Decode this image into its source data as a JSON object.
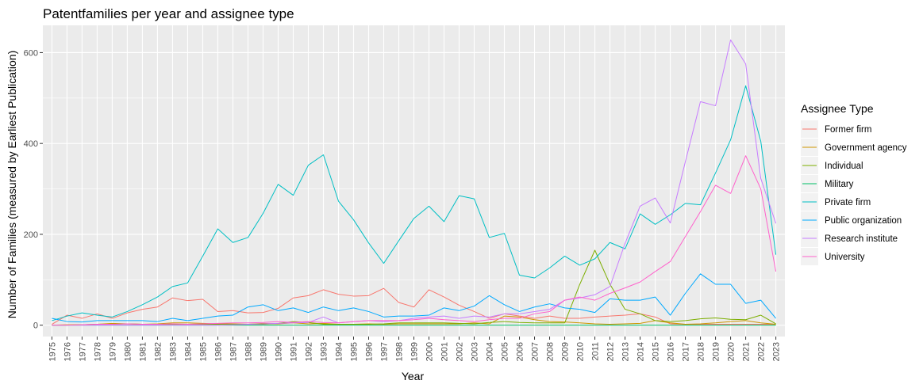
{
  "chart_data": {
    "type": "line",
    "title": "Patentfamilies per year and assignee type",
    "xlabel": "Year",
    "ylabel": "Number of Families (measured by Earliest Publication)",
    "ylim": [
      -25,
      660
    ],
    "y_ticks": [
      0,
      200,
      400,
      600
    ],
    "grid": true,
    "legend_title": "Assignee Type",
    "legend_position": "right",
    "x": [
      1975,
      1976,
      1977,
      1978,
      1979,
      1980,
      1981,
      1982,
      1983,
      1984,
      1985,
      1986,
      1987,
      1988,
      1989,
      1990,
      1991,
      1992,
      1993,
      1994,
      1995,
      1996,
      1997,
      1998,
      1999,
      2000,
      2001,
      2002,
      2003,
      2004,
      2005,
      2006,
      2007,
      2008,
      2009,
      2010,
      2011,
      2012,
      2013,
      2014,
      2015,
      2016,
      2017,
      2018,
      2019,
      2020,
      2021,
      2022,
      2023
    ],
    "series": [
      {
        "name": "Former firm",
        "color": "#F8766D",
        "values": [
          2,
          22,
          15,
          25,
          15,
          27,
          35,
          40,
          60,
          54,
          57,
          30,
          32,
          27,
          28,
          37,
          60,
          65,
          78,
          68,
          64,
          65,
          81,
          50,
          40,
          78,
          62,
          44,
          30,
          15,
          25,
          20,
          15,
          20,
          15,
          15,
          18,
          20,
          22,
          25,
          18,
          3,
          2,
          2,
          2,
          2,
          2,
          2,
          2
        ]
      },
      {
        "name": "Government agency",
        "color": "#CD9600",
        "values": [
          0,
          1,
          1,
          2,
          4,
          3,
          2,
          3,
          5,
          5,
          4,
          3,
          3,
          2,
          4,
          3,
          5,
          3,
          4,
          2,
          2,
          3,
          2,
          3,
          3,
          3,
          3,
          3,
          5,
          3,
          20,
          18,
          12,
          8,
          7,
          5,
          3,
          2,
          3,
          4,
          10,
          5,
          2,
          3,
          5,
          8,
          10,
          5,
          2
        ]
      },
      {
        "name": "Individual",
        "color": "#7CAE00",
        "values": [
          0,
          0,
          1,
          2,
          2,
          3,
          2,
          1,
          2,
          2,
          2,
          2,
          2,
          2,
          2,
          4,
          8,
          6,
          2,
          2,
          2,
          2,
          3,
          5,
          5,
          5,
          5,
          4,
          3,
          6,
          8,
          6,
          5,
          5,
          5,
          90,
          165,
          90,
          35,
          25,
          10,
          8,
          10,
          14,
          16,
          13,
          12,
          22,
          3
        ]
      },
      {
        "name": "Military",
        "color": "#00BE67",
        "values": [
          0,
          0,
          0,
          0,
          0,
          0,
          0,
          0,
          0,
          0,
          0,
          0,
          0,
          0,
          0,
          0,
          0,
          0,
          0,
          0,
          0,
          0,
          0,
          0,
          0,
          0,
          0,
          0,
          0,
          0,
          0,
          0,
          0,
          0,
          0,
          0,
          0,
          0,
          0,
          0,
          0,
          0,
          0,
          0,
          0,
          0,
          0,
          0,
          0
        ]
      },
      {
        "name": "Private firm",
        "color": "#00BFC4",
        "values": [
          10,
          20,
          27,
          22,
          18,
          30,
          45,
          62,
          85,
          93,
          152,
          212,
          182,
          193,
          246,
          310,
          286,
          352,
          375,
          273,
          232,
          181,
          136,
          186,
          235,
          262,
          228,
          285,
          278,
          193,
          202,
          110,
          104,
          126,
          152,
          132,
          146,
          182,
          168,
          245,
          222,
          243,
          268,
          265,
          335,
          408,
          527,
          405,
          155
        ]
      },
      {
        "name": "Public organization",
        "color": "#00A9FF",
        "values": [
          15,
          8,
          7,
          10,
          10,
          10,
          10,
          8,
          15,
          10,
          15,
          20,
          22,
          40,
          45,
          32,
          38,
          28,
          40,
          32,
          38,
          30,
          18,
          20,
          20,
          22,
          38,
          32,
          42,
          65,
          45,
          30,
          40,
          47,
          38,
          35,
          28,
          58,
          55,
          55,
          62,
          22,
          70,
          113,
          90,
          90,
          48,
          55,
          15
        ]
      },
      {
        "name": "Research institute",
        "color": "#C77CFF",
        "values": [
          0,
          0,
          0,
          0,
          0,
          0,
          0,
          0,
          0,
          0,
          0,
          0,
          1,
          2,
          3,
          4,
          5,
          6,
          18,
          5,
          8,
          10,
          8,
          10,
          15,
          18,
          20,
          15,
          20,
          18,
          25,
          25,
          30,
          35,
          55,
          60,
          67,
          85,
          180,
          262,
          280,
          225,
          360,
          492,
          483,
          628,
          575,
          323,
          224
        ]
      },
      {
        "name": "University",
        "color": "#FF61CC",
        "values": [
          0,
          0,
          1,
          2,
          2,
          3,
          2,
          2,
          3,
          2,
          3,
          4,
          5,
          5,
          6,
          8,
          6,
          8,
          6,
          5,
          8,
          10,
          10,
          10,
          12,
          15,
          12,
          10,
          8,
          12,
          15,
          15,
          25,
          30,
          55,
          62,
          55,
          70,
          82,
          95,
          118,
          140,
          195,
          250,
          308,
          290,
          373,
          300,
          118
        ]
      }
    ]
  }
}
